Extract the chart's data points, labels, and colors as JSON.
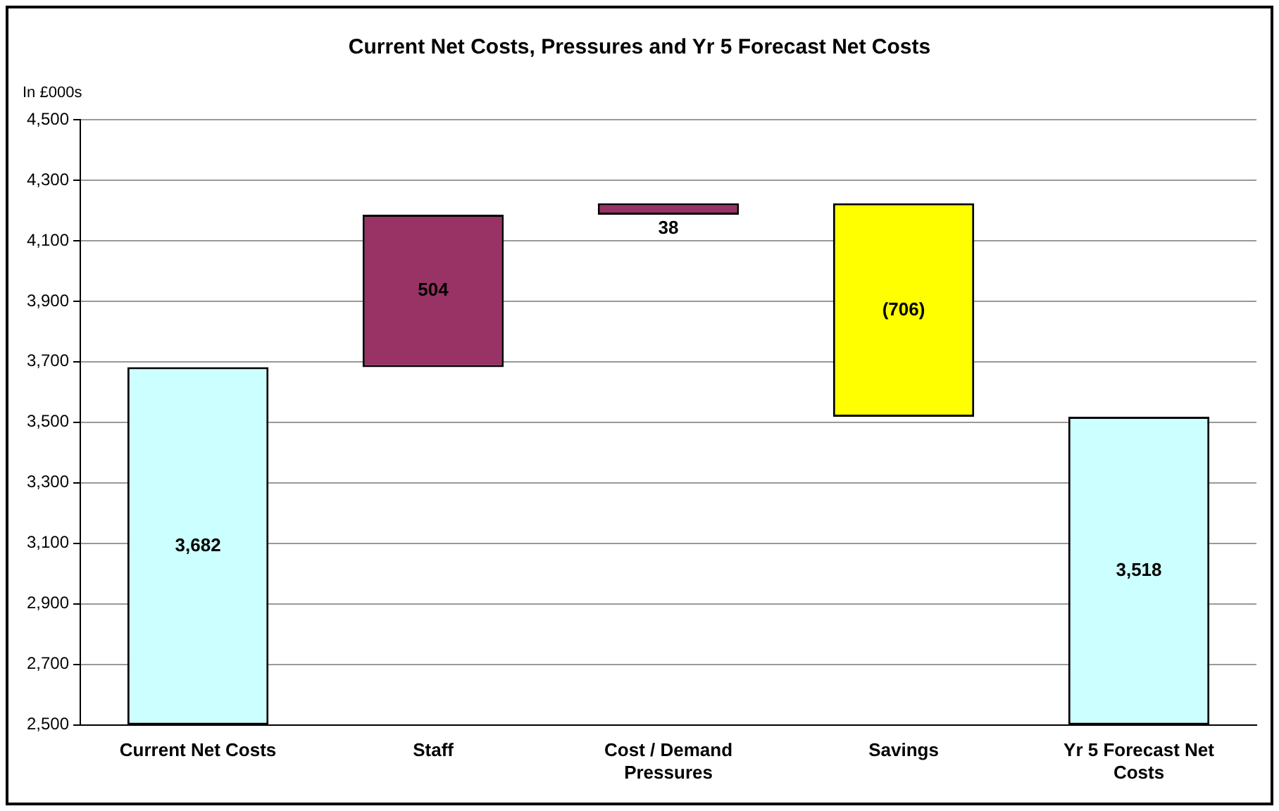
{
  "chart_data": {
    "type": "bar",
    "title": "Current Net Costs, Pressures and Yr 5 Forecast Net Costs",
    "ylabel": "In £000s",
    "categories": [
      "Current Net Costs",
      "Staff",
      "Cost / Demand Pressures",
      "Savings",
      "Yr 5 Forecast Net Costs"
    ],
    "values": [
      3682,
      504,
      38,
      -706,
      3518
    ],
    "base": [
      null,
      3682,
      4186,
      4224,
      null
    ],
    "colors": [
      "#ccffff",
      "#993366",
      "#993366",
      "#ffff00",
      "#ccffff"
    ],
    "value_labels": [
      "3,682",
      "504",
      "38",
      "(706)",
      "3,518"
    ],
    "ylim": [
      2500,
      4500
    ],
    "yticks": [
      {
        "value": 2500,
        "label": "2,500"
      },
      {
        "value": 2700,
        "label": "2,700"
      },
      {
        "value": 2900,
        "label": "2,900"
      },
      {
        "value": 3100,
        "label": "3,100"
      },
      {
        "value": 3300,
        "label": "3,300"
      },
      {
        "value": 3500,
        "label": "3,500"
      },
      {
        "value": 3700,
        "label": "3,700"
      },
      {
        "value": 3900,
        "label": "3,900"
      },
      {
        "value": 4100,
        "label": "4,100"
      },
      {
        "value": 4300,
        "label": "4,300"
      },
      {
        "value": 4500,
        "label": "4,500"
      }
    ],
    "grid": "y",
    "legend": false
  }
}
